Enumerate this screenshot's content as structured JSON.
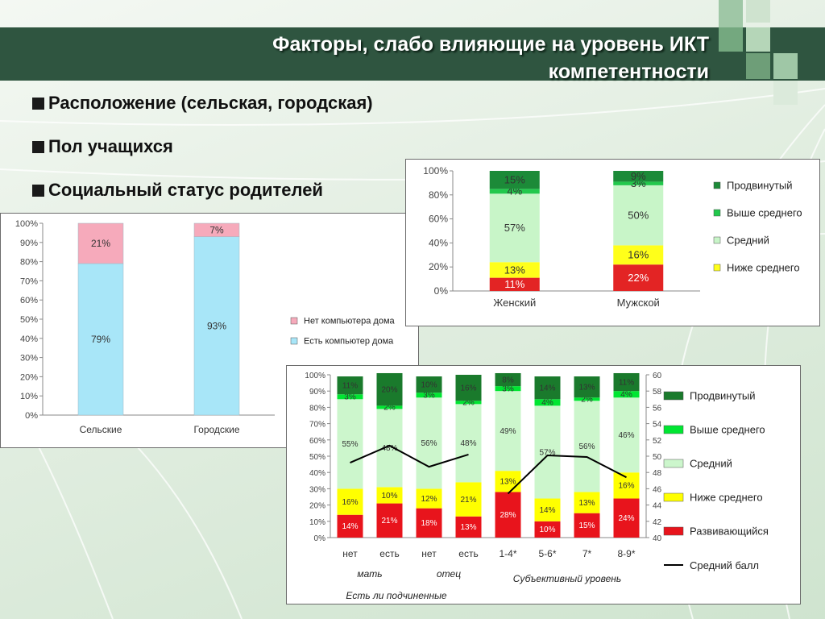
{
  "slide": {
    "title_line1": "Факторы, слабо влияющие на уровень ИКТ",
    "title_line2": "компетентности",
    "bullets": [
      "Расположение (сельская, городская)",
      "Пол учащихся",
      "Социальный статус родителей"
    ]
  },
  "chart_data": [
    {
      "type": "bar",
      "stacked": true,
      "categories": [
        "Сельские",
        "Городские"
      ],
      "series": [
        {
          "name": "Есть компьютер дома",
          "values": [
            79,
            93
          ],
          "labels": [
            "79%",
            "93%"
          ],
          "color": "#a8e6f8"
        },
        {
          "name": "Нет компьютера дома",
          "values": [
            21,
            7
          ],
          "labels": [
            "21%",
            "7%"
          ],
          "color": "#f6aabb"
        }
      ],
      "ylim": [
        0,
        100
      ],
      "yticks": [
        "0%",
        "10%",
        "20%",
        "30%",
        "40%",
        "50%",
        "60%",
        "70%",
        "80%",
        "90%",
        "100%"
      ],
      "legend": [
        "Нет компьютера дома",
        "Есть компьютер дома"
      ],
      "legend_position": "right",
      "grid": false
    },
    {
      "type": "bar",
      "stacked": true,
      "categories": [
        "Женский",
        "Мужской"
      ],
      "series": [
        {
          "name": "Развивающийся",
          "values": [
            11,
            22
          ],
          "labels": [
            "11%",
            "22%"
          ],
          "color": "#e32424"
        },
        {
          "name": "Ниже среднего",
          "values": [
            13,
            16
          ],
          "labels": [
            "13%",
            "16%"
          ],
          "color": "#ffff1a"
        },
        {
          "name": "Средний",
          "values": [
            57,
            50
          ],
          "labels": [
            "57%",
            "50%"
          ],
          "color": "#c8f5c8"
        },
        {
          "name": "Выше среднего",
          "values": [
            4,
            3
          ],
          "labels": [
            "4%",
            "3%"
          ],
          "color": "#22c84c"
        },
        {
          "name": "Продвинутый",
          "values": [
            15,
            9
          ],
          "labels": [
            "15%",
            "9%"
          ],
          "color": "#1c8a38"
        }
      ],
      "ylim": [
        0,
        100
      ],
      "yticks": [
        "0%",
        "20%",
        "40%",
        "60%",
        "80%",
        "100%"
      ],
      "legend": [
        "Продвинутый",
        "Выше среднего",
        "Средний",
        "Ниже среднего"
      ],
      "legend_position": "right",
      "grid": false
    },
    {
      "type": "bar",
      "stacked": true,
      "categories": [
        "нет",
        "есть",
        "нет",
        "есть",
        "1-4*",
        "5-6*",
        "7*",
        "8-9*"
      ],
      "group_labels": [
        "мать",
        "отец",
        "Субъективный уровень",
        "Есть ли подчиненные"
      ],
      "series": [
        {
          "name": "Развивающийся",
          "values": [
            14,
            21,
            18,
            13,
            28,
            10,
            15,
            24
          ],
          "labels": [
            "14%",
            "21%",
            "18%",
            "13%",
            "28%",
            "10%",
            "15%",
            "24%"
          ],
          "color": "#e8141c"
        },
        {
          "name": "Ниже среднего",
          "values": [
            16,
            10,
            12,
            21,
            13,
            14,
            13,
            16
          ],
          "labels": [
            "16%",
            "10%",
            "12%",
            "21%",
            "13%",
            "14%",
            "13%",
            "16%"
          ],
          "color": "#ffff00"
        },
        {
          "name": "Средний",
          "values": [
            55,
            48,
            56,
            48,
            49,
            57,
            56,
            46
          ],
          "labels": [
            "55%",
            "48%",
            "56%",
            "48%",
            "49%",
            "57%",
            "56%",
            "46%"
          ],
          "color": "#ccf6cc"
        },
        {
          "name": "Выше среднего",
          "values": [
            3,
            2,
            3,
            2,
            3,
            4,
            2,
            4
          ],
          "labels": [
            "3%",
            "2%",
            "3%",
            "2%",
            "3%",
            "4%",
            "2%",
            "4%"
          ],
          "color": "#00e632"
        },
        {
          "name": "Продвинутый",
          "values": [
            11,
            20,
            10,
            16,
            8,
            14,
            13,
            11
          ],
          "labels": [
            "11%",
            "20%",
            "10%",
            "16%",
            "8%",
            "14%",
            "13%",
            "11%"
          ],
          "color": "#1a7a2c"
        }
      ],
      "line_series": {
        "name": "Средний балл",
        "segments": [
          [
            0,
            1,
            2,
            3
          ],
          [
            4,
            5,
            6,
            7
          ]
        ],
        "values": [
          49.2,
          51.3,
          48.7,
          50.2,
          45.4,
          50.1,
          49.9,
          47.4
        ]
      },
      "ylim": [
        0,
        100
      ],
      "y2lim": [
        40,
        60
      ],
      "yticks": [
        "0%",
        "10%",
        "20%",
        "30%",
        "40%",
        "50%",
        "60%",
        "70%",
        "80%",
        "90%",
        "100%"
      ],
      "y2ticks": [
        "40",
        "42",
        "44",
        "46",
        "48",
        "50",
        "52",
        "54",
        "56",
        "58",
        "60"
      ],
      "legend": [
        "Продвинутый",
        "Выше среднего",
        "Средний",
        "Ниже среднего",
        "Развивающийся",
        "Средний балл"
      ],
      "legend_position": "right",
      "grid": false
    }
  ]
}
